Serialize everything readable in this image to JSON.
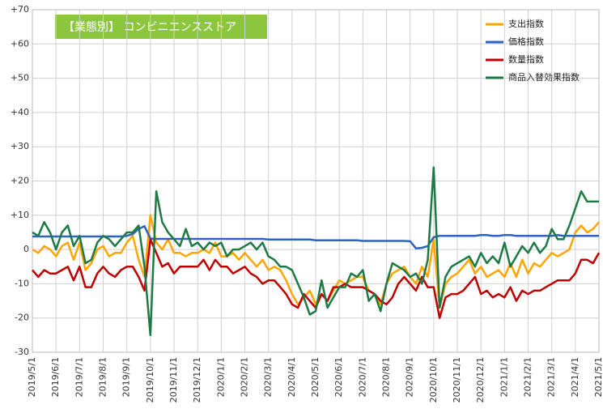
{
  "chart_data": {
    "type": "line",
    "title": "【業態別】 コンビニエンスストア",
    "categories": [
      "2019/5/1",
      null,
      null,
      null,
      "2019/6/1",
      null,
      null,
      null,
      "2019/7/1",
      null,
      null,
      null,
      "2019/8/1",
      null,
      null,
      null,
      "2019/9/1",
      null,
      null,
      null,
      "2019/10/1",
      null,
      null,
      null,
      "2019/11/1",
      null,
      null,
      null,
      "2019/12/1",
      null,
      null,
      null,
      "2020/1/1",
      null,
      null,
      null,
      "2020/2/1",
      null,
      null,
      null,
      "2020/3/1",
      null,
      null,
      null,
      "2020/4/1",
      null,
      null,
      null,
      "2020/5/1",
      null,
      null,
      null,
      "2020/6/1",
      null,
      null,
      null,
      "2020/7/1",
      null,
      null,
      null,
      "2020/8/1",
      null,
      null,
      null,
      "2020/9/1",
      null,
      null,
      null,
      "2020/10/1",
      null,
      null,
      null,
      "2020/11/1",
      null,
      null,
      null,
      "2020/12/1",
      null,
      null,
      null,
      "2021/1/1",
      null,
      null,
      null,
      "2021/2/1",
      null,
      null,
      null,
      "2021/3/1",
      null,
      null,
      null,
      "2021/4/1",
      null,
      null,
      null,
      "2021/5/1"
    ],
    "series": [
      {
        "name": "支出指数",
        "color": "#ffa500",
        "values": [
          0,
          -1,
          1,
          0,
          -2,
          1,
          2,
          -3,
          2,
          -6,
          -4,
          0,
          1,
          -2,
          -1,
          -1,
          2,
          4,
          -3,
          -8,
          10,
          2,
          0,
          3,
          -1,
          -1,
          -2,
          -1,
          -1,
          0,
          -1,
          2,
          -2,
          -2,
          -1,
          -3,
          -1,
          -3,
          -5,
          -3,
          -6,
          -5,
          -6,
          -9,
          -13,
          -16,
          -14,
          -12,
          -16,
          -13,
          -15,
          -12,
          -9,
          -10,
          -9,
          -8,
          -8,
          -12,
          -13,
          -16,
          -10,
          -7,
          -6,
          -5,
          -8,
          -10,
          -5,
          -8,
          3,
          -17,
          -10,
          -8,
          -7,
          -5,
          -3,
          -7,
          -5,
          -8,
          -7,
          -6,
          -8,
          -4,
          -8,
          -3,
          -7,
          -4,
          -5,
          -3,
          -1,
          -2,
          -1,
          0,
          5,
          7,
          5,
          6,
          8
        ]
      },
      {
        "name": "価格指数",
        "color": "#2e63c4",
        "values": [
          3.8,
          3.8,
          3.8,
          3.8,
          3.8,
          3.8,
          3.8,
          3.8,
          3.8,
          3.8,
          3.8,
          3.8,
          3.8,
          3.8,
          3.8,
          3.8,
          4,
          4.5,
          6,
          6.8,
          3.2,
          3.1,
          3.1,
          3.1,
          3.1,
          3.1,
          3.1,
          3.1,
          3.1,
          3.1,
          3.1,
          3.1,
          3.1,
          3.1,
          3.1,
          3.1,
          3.1,
          3.1,
          3.1,
          3.1,
          2.9,
          2.9,
          2.9,
          2.9,
          2.9,
          2.9,
          2.9,
          2.9,
          2.7,
          2.7,
          2.7,
          2.7,
          2.7,
          2.7,
          2.7,
          2.7,
          2.5,
          2.5,
          2.5,
          2.5,
          2.5,
          2.5,
          2.5,
          2.5,
          2.4,
          0.3,
          0.5,
          1,
          3.6,
          4,
          4,
          4,
          4,
          4,
          4,
          4,
          4.2,
          4.2,
          4,
          4,
          4.2,
          4.2,
          4,
          4,
          4,
          4,
          4,
          4,
          4,
          4.2,
          4,
          4,
          4,
          4,
          4,
          4,
          4
        ]
      },
      {
        "name": "数量指数",
        "color": "#c00000",
        "values": [
          -6,
          -8,
          -6,
          -7,
          -7,
          -6,
          -5,
          -9,
          -5,
          -11,
          -11,
          -7,
          -5,
          -7,
          -8,
          -6,
          -5,
          -5,
          -8,
          -12,
          3,
          -1,
          -5,
          -4,
          -7,
          -5,
          -5,
          -5,
          -5,
          -3,
          -6,
          -3,
          -5,
          -5,
          -7,
          -6,
          -5,
          -7,
          -8,
          -10,
          -9,
          -9,
          -11,
          -13,
          -16,
          -17,
          -13,
          -15,
          -17,
          -13,
          -15,
          -11,
          -11,
          -10,
          -11,
          -11,
          -11,
          -12,
          -13,
          -15,
          -16,
          -14,
          -10,
          -8,
          -10,
          -12,
          -8,
          -11,
          -11,
          -20,
          -14,
          -13,
          -13,
          -12,
          -10,
          -8,
          -13,
          -12,
          -14,
          -13,
          -14,
          -11,
          -15,
          -12,
          -13,
          -12,
          -12,
          -11,
          -10,
          -9,
          -9,
          -9,
          -7,
          -3,
          -3,
          -4,
          -1
        ]
      },
      {
        "name": "商品入替効果指数",
        "color": "#1e7a45",
        "values": [
          5,
          4,
          8,
          5,
          0,
          5,
          7,
          1,
          4,
          -4,
          -3,
          2,
          4,
          3,
          1,
          3,
          5,
          5,
          7,
          -5,
          -25,
          17,
          8,
          5,
          3,
          1,
          6,
          1,
          2,
          0,
          2,
          1,
          2,
          -2,
          0,
          0,
          1,
          2,
          0,
          2,
          -2,
          -3,
          -5,
          -5,
          -6,
          -10,
          -14,
          -19,
          -18,
          -9,
          -17,
          -14,
          -11,
          -11,
          -7,
          -8,
          -6,
          -15,
          -13,
          -18,
          -10,
          -4,
          -5,
          -6,
          -8,
          -7,
          -10,
          -3,
          24,
          -17,
          -8,
          -5,
          -4,
          -3,
          -2,
          -5,
          -1,
          -4,
          -2,
          -4,
          2,
          -5,
          -2,
          1,
          -1,
          2,
          -1,
          1,
          6,
          3,
          3,
          7,
          12,
          17,
          14,
          14,
          14
        ]
      }
    ],
    "ylim": [
      -30,
      70
    ],
    "yticks": [
      -30,
      -20,
      -10,
      0,
      {
        "value": 10,
        "label": "+10"
      },
      {
        "value": 20,
        "label": "+20"
      },
      {
        "value": 30,
        "label": "+30"
      },
      {
        "value": 40,
        "label": "+40"
      },
      {
        "value": 50,
        "label": "+50"
      },
      {
        "value": 60,
        "label": "+60"
      },
      {
        "value": 70,
        "label": "+70"
      }
    ],
    "grid": true,
    "legend": "top-right"
  }
}
